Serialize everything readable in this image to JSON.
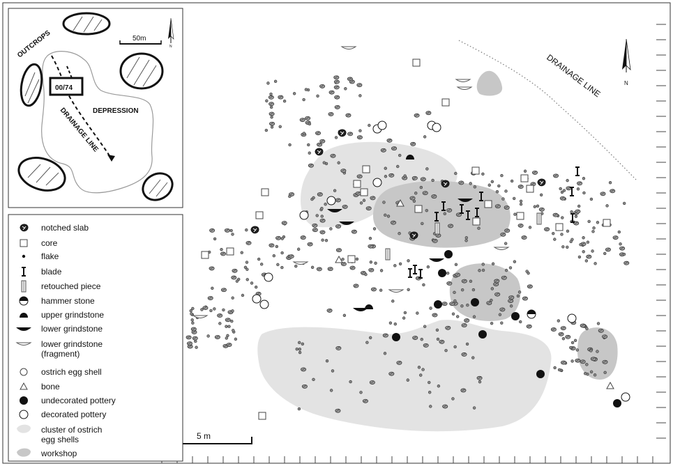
{
  "inset": {
    "outcrops_label": "OUTCROPS",
    "depression_label": "DEPRESSION",
    "drainage_label": "DRAINAGE LINE",
    "site_label": "00/74",
    "scale_label": "50m",
    "north_label": "N"
  },
  "main": {
    "drainage_label": "DRAINAGE LINE",
    "north_label": "N",
    "scale_label": "5 m"
  },
  "legend": {
    "items": [
      {
        "symbol": "notched-slab",
        "label": "notched slab"
      },
      {
        "symbol": "core",
        "label": "core"
      },
      {
        "symbol": "flake",
        "label": "flake"
      },
      {
        "symbol": "blade",
        "label": "blade"
      },
      {
        "symbol": "retouched-piece",
        "label": "retouched piece"
      },
      {
        "symbol": "hammer-stone",
        "label": "hammer stone"
      },
      {
        "symbol": "upper-grindstone",
        "label": "upper grindstone"
      },
      {
        "symbol": "lower-grindstone",
        "label": "lower grindstone"
      },
      {
        "symbol": "lower-grindstone-fragment",
        "label": "lower grindstone",
        "label2": "(fragment)"
      },
      {
        "symbol": "ostrich-egg-shell",
        "label": "ostrich egg shell"
      },
      {
        "symbol": "bone",
        "label": "bone"
      },
      {
        "symbol": "undecorated-pottery",
        "label": "undecorated pottery"
      },
      {
        "symbol": "decorated-pottery",
        "label": "decorated pottery"
      },
      {
        "symbol": "cluster-ostrich",
        "label": "cluster of ostrich",
        "label2": "egg shells"
      },
      {
        "symbol": "workshop",
        "label": "workshop"
      }
    ]
  },
  "colors": {
    "cluster_fill": "#e3e3e3",
    "workshop_fill": "#c7c7c7",
    "ink": "#111111"
  }
}
